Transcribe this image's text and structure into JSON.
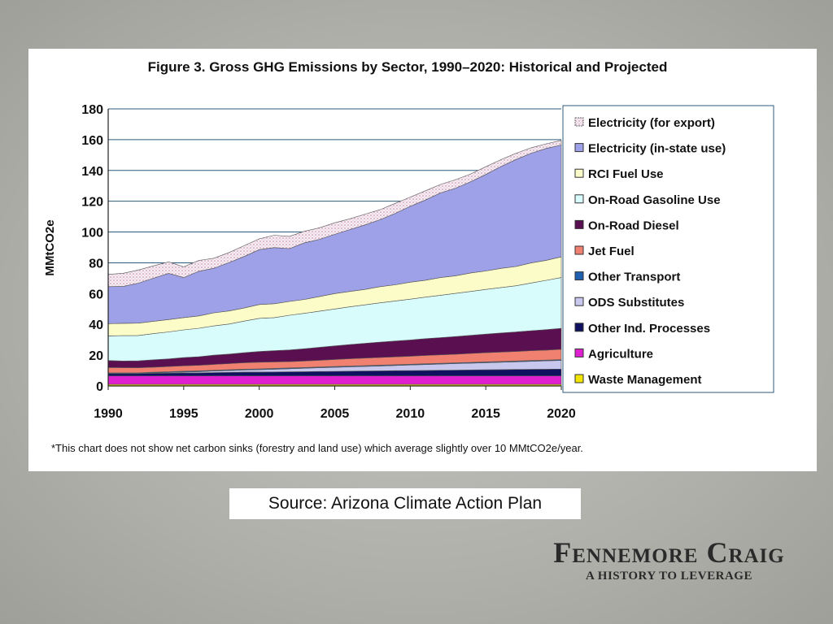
{
  "chart_data": {
    "type": "area",
    "title": "Figure 3. Gross GHG Emissions by Sector, 1990–2020: Historical and Projected",
    "xlabel": "",
    "ylabel": "MMtCO2e",
    "xlim": [
      1990,
      2020
    ],
    "ylim": [
      0,
      180
    ],
    "y_ticks": [
      0,
      20,
      40,
      60,
      80,
      100,
      120,
      140,
      160,
      180
    ],
    "x_ticks": [
      1990,
      1995,
      2000,
      2005,
      2010,
      2015,
      2020
    ],
    "grid": "horizontal",
    "legend_position": "right",
    "stacked": true,
    "x": [
      1990,
      1991,
      1992,
      1993,
      1994,
      1995,
      1996,
      1997,
      1998,
      1999,
      2000,
      2001,
      2002,
      2003,
      2004,
      2005,
      2006,
      2007,
      2008,
      2009,
      2010,
      2011,
      2012,
      2013,
      2014,
      2015,
      2016,
      2017,
      2018,
      2019,
      2020
    ],
    "series": [
      {
        "name": "Waste Management",
        "color": "#f2e600",
        "values": [
          1,
          1,
          1,
          1,
          1,
          1,
          1,
          1,
          1,
          1,
          1,
          1,
          1,
          1,
          1,
          1,
          1,
          1,
          1,
          1,
          1,
          1,
          1,
          1,
          1,
          1,
          1,
          1,
          1,
          1,
          1
        ]
      },
      {
        "name": "Agriculture",
        "color": "#e020d0",
        "values": [
          5.5,
          5.5,
          5.5,
          5.5,
          5.5,
          5.5,
          5.5,
          5.5,
          5.5,
          5.5,
          5.5,
          5.5,
          5.5,
          5.5,
          5.5,
          5.5,
          5.5,
          5.5,
          5.5,
          5.5,
          5.5,
          5.5,
          5.5,
          5.5,
          5.5,
          5.5,
          5.5,
          5.5,
          5.5,
          5.5,
          5.5
        ]
      },
      {
        "name": "Other Ind. Processes",
        "color": "#101060",
        "values": [
          1.5,
          1.5,
          1.5,
          1.7,
          1.8,
          2,
          2,
          2.2,
          2.3,
          2.5,
          2.5,
          2.6,
          2.7,
          2.8,
          2.9,
          3,
          3.1,
          3.2,
          3.3,
          3.4,
          3.5,
          3.6,
          3.7,
          3.8,
          3.9,
          4,
          4.1,
          4.2,
          4.3,
          4.4,
          4.5
        ]
      },
      {
        "name": "ODS Substitutes",
        "color": "#c8c8ee",
        "values": [
          0,
          0,
          0,
          0.2,
          0.4,
          0.6,
          0.8,
          1,
          1.2,
          1.4,
          1.6,
          1.8,
          2,
          2.2,
          2.4,
          2.6,
          2.8,
          3,
          3.2,
          3.4,
          3.6,
          3.8,
          4,
          4.2,
          4.4,
          4.6,
          4.8,
          5,
          5.2,
          5.4,
          5.6
        ]
      },
      {
        "name": "Other Transport",
        "color": "#2060b0",
        "values": [
          0.5,
          0.5,
          0.5,
          0.5,
          0.5,
          0.5,
          0.5,
          0.5,
          0.5,
          0.5,
          0.5,
          0.5,
          0.5,
          0.5,
          0.5,
          0.5,
          0.5,
          0.5,
          0.5,
          0.5,
          0.5,
          0.5,
          0.5,
          0.5,
          0.5,
          0.5,
          0.5,
          0.5,
          0.5,
          0.5,
          0.5
        ]
      },
      {
        "name": "Jet Fuel",
        "color": "#f08070",
        "values": [
          3.5,
          3.4,
          3.3,
          3.3,
          3.4,
          3.5,
          3.6,
          3.8,
          4,
          4.2,
          4.3,
          4.2,
          4.1,
          4.2,
          4.4,
          4.6,
          4.8,
          4.9,
          5,
          5.1,
          5.2,
          5.4,
          5.5,
          5.6,
          5.8,
          6,
          6.1,
          6.2,
          6.4,
          6.5,
          6.7
        ]
      },
      {
        "name": "On-Road Diesel",
        "color": "#5a1050",
        "values": [
          4.5,
          4.3,
          4.5,
          4.8,
          5,
          5.3,
          5.6,
          6,
          6.2,
          6.5,
          7,
          7.3,
          7.6,
          8,
          8.4,
          8.8,
          9.2,
          9.6,
          10,
          10.3,
          10.6,
          10.9,
          11.2,
          11.5,
          11.8,
          12.1,
          12.4,
          12.7,
          13,
          13.3,
          13.6
        ]
      },
      {
        "name": "On-Road Gasoline Use",
        "color": "#d8fcfc",
        "values": [
          16,
          16.5,
          16.5,
          17,
          17.5,
          18,
          18.5,
          19,
          19.5,
          20.5,
          21.5,
          21.5,
          22.5,
          23,
          23.5,
          24,
          24.5,
          25,
          25.5,
          26,
          26.5,
          27,
          27.5,
          28,
          28.5,
          29,
          29.5,
          30,
          31,
          32,
          33
        ]
      },
      {
        "name": "RCI Fuel Use",
        "color": "#fcfcc8",
        "values": [
          8,
          8,
          8,
          8,
          8,
          8,
          8,
          8.5,
          8.5,
          8.5,
          9,
          9,
          9,
          9,
          9.5,
          10,
          10,
          10,
          10.5,
          10.5,
          11,
          11,
          11.5,
          11.5,
          12,
          12,
          12.5,
          12.5,
          13,
          13,
          13.5
        ]
      },
      {
        "name": "Electricity (in-state use)",
        "color": "#9ea0e8",
        "values": [
          24,
          24,
          26,
          28,
          30,
          26,
          29,
          29,
          31.5,
          33.5,
          35.7,
          36.5,
          34.3,
          36.8,
          37.2,
          38.5,
          40.2,
          41.9,
          43.5,
          46.4,
          49.3,
          52.1,
          55,
          56.9,
          59.3,
          62.7,
          66.1,
          69.5,
          71.3,
          72.7,
          72.6
        ]
      },
      {
        "name": "Electricity (for export)",
        "color": "#f3e6ee",
        "values": [
          8,
          8.5,
          8.5,
          8,
          7.5,
          7,
          7,
          6.5,
          6.5,
          7,
          7,
          8,
          8,
          7.5,
          7.5,
          7.5,
          7,
          7,
          6.5,
          6.5,
          6,
          6,
          5.5,
          5.5,
          5,
          5,
          4.5,
          4,
          3.5,
          3,
          3
        ]
      }
    ],
    "annotation": "*This chart does not show net carbon sinks (forestry and land use) which average slightly over 10 MMtCO2e/year."
  },
  "source": "Source: Arizona Climate Action Plan",
  "logo": {
    "name": "Fennemore Craig",
    "tagline": "A HISTORY TO LEVERAGE"
  }
}
